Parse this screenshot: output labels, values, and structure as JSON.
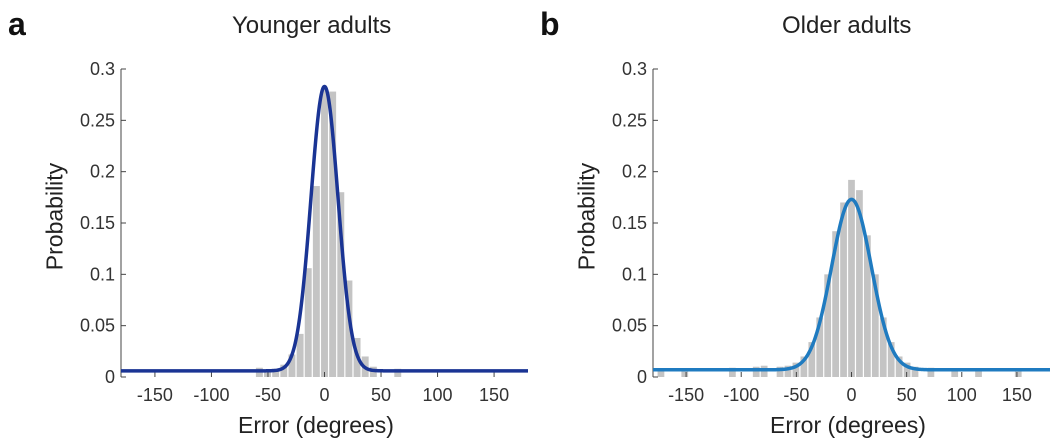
{
  "chart_data": [
    {
      "type": "bar",
      "panel_letter": "a",
      "title": "Younger adults",
      "xlabel": "Error (degrees)",
      "ylabel": "Probability",
      "xlim": [
        -180,
        180
      ],
      "ylim": [
        0,
        0.3
      ],
      "x_ticks": [
        -150,
        -100,
        -50,
        0,
        50,
        100,
        150
      ],
      "y_ticks": [
        0,
        0.05,
        0.1,
        0.15,
        0.2,
        0.25,
        0.3
      ],
      "x_tick_labels": [
        "-150",
        "-100",
        "-50",
        "0",
        "50",
        "100",
        "150"
      ],
      "y_tick_labels": [
        "0",
        "0.05",
        "0.1",
        "0.15",
        "0.2",
        "0.25",
        "0.3"
      ],
      "histogram": {
        "bin_width": 7.2,
        "bin_centers": [
          -57.6,
          -50.4,
          -43.2,
          -36,
          -28.8,
          -21.6,
          -14.4,
          -7.2,
          0,
          7.2,
          14.4,
          21.6,
          28.8,
          36,
          43.2,
          64.8
        ],
        "values": [
          0.009,
          0.007,
          0.008,
          0.012,
          0.022,
          0.042,
          0.106,
          0.186,
          0.28,
          0.278,
          0.18,
          0.094,
          0.038,
          0.02,
          0.01,
          0.008
        ],
        "color": "#c4c4c4"
      },
      "fit": {
        "model": "gaussian plus uniform",
        "mean": 0,
        "sd": 12,
        "peak": 0.283,
        "baseline": 0.006,
        "color": "#1a3494"
      }
    },
    {
      "type": "bar",
      "panel_letter": "b",
      "title": "Older adults",
      "xlabel": "Error (degrees)",
      "ylabel": "Probability",
      "xlim": [
        -180,
        180
      ],
      "ylim": [
        0,
        0.3
      ],
      "x_ticks": [
        -150,
        -100,
        -50,
        0,
        50,
        100,
        150
      ],
      "y_ticks": [
        0,
        0.05,
        0.1,
        0.15,
        0.2,
        0.25,
        0.3
      ],
      "x_tick_labels": [
        "-150",
        "-100",
        "-50",
        "0",
        "50",
        "100",
        "150"
      ],
      "y_tick_labels": [
        "0",
        "0.05",
        "0.1",
        "0.15",
        "0.2",
        "0.25",
        "0.3"
      ],
      "histogram": {
        "bin_width": 7.2,
        "bin_centers": [
          -172.8,
          -151.2,
          -108,
          -86.4,
          -79.2,
          -64.8,
          -57.6,
          -50.4,
          -43.2,
          -36,
          -28.8,
          -21.6,
          -14.4,
          -7.2,
          0,
          7.2,
          14.4,
          21.6,
          28.8,
          36,
          43.2,
          50.4,
          57.6,
          72,
          93.6,
          115.2,
          151.2
        ],
        "values": [
          0.008,
          0.007,
          0.009,
          0.01,
          0.011,
          0.01,
          0.011,
          0.014,
          0.02,
          0.034,
          0.058,
          0.1,
          0.142,
          0.17,
          0.192,
          0.182,
          0.138,
          0.1,
          0.058,
          0.034,
          0.02,
          0.014,
          0.01,
          0.009,
          0.008,
          0.008,
          0.007
        ],
        "color": "#c4c4c4"
      },
      "fit": {
        "model": "gaussian plus uniform",
        "mean": 0,
        "sd": 18,
        "peak": 0.173,
        "baseline": 0.007,
        "color": "#1f7bc0"
      }
    }
  ]
}
